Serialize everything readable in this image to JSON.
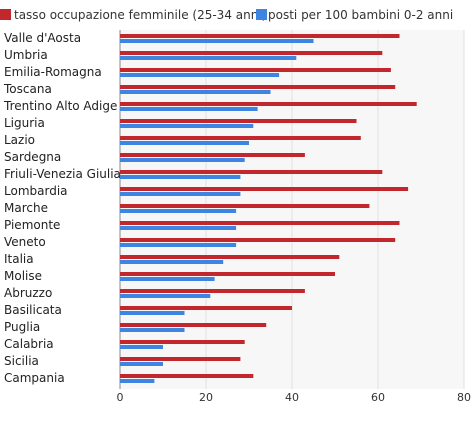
{
  "chart_data": {
    "type": "bar",
    "orientation": "horizontal",
    "categories": [
      "Valle d'Aosta",
      "Umbria",
      "Emilia-Romagna",
      "Toscana",
      "Trentino Alto Adige",
      "Liguria",
      "Lazio",
      "Sardegna",
      "Friuli-Venezia Giulia",
      "Lombardia",
      "Marche",
      "Piemonte",
      "Veneto",
      "Italia",
      "Molise",
      "Abruzzo",
      "Basilicata",
      "Puglia",
      "Calabria",
      "Sicilia",
      "Campania"
    ],
    "series": [
      {
        "name": "tasso occupazione femminile (25-34 anni)",
        "color": "#c1272d",
        "values": [
          65,
          61,
          63,
          64,
          69,
          55,
          56,
          43,
          61,
          67,
          58,
          65,
          64,
          51,
          50,
          43,
          40,
          34,
          29,
          28,
          31
        ]
      },
      {
        "name": "posti per 100 bambini 0-2 anni",
        "color": "#3d85e0",
        "values": [
          45,
          41,
          37,
          35,
          32,
          31,
          30,
          29,
          28,
          28,
          27,
          27,
          27,
          24,
          22,
          21,
          15,
          15,
          10,
          10,
          8
        ]
      }
    ],
    "xlim": [
      0,
      80
    ],
    "xticks": [
      0,
      20,
      40,
      60,
      80
    ],
    "grid": true,
    "legend_position": "top-left"
  }
}
